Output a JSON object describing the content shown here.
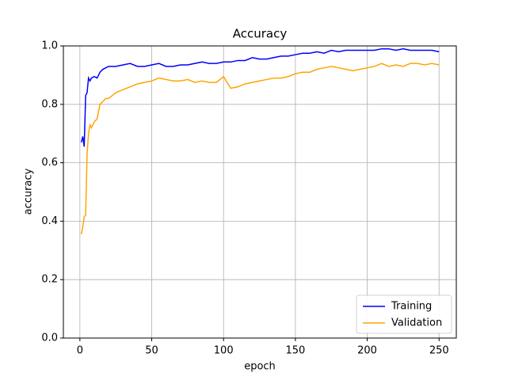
{
  "chart_data": {
    "type": "line",
    "title": "Accuracy",
    "x_label": "epoch",
    "y_label": "accuracy",
    "x": [
      1,
      2,
      3,
      4,
      5,
      6,
      7,
      8,
      10,
      12,
      14,
      16,
      18,
      20,
      25,
      30,
      35,
      40,
      45,
      50,
      55,
      60,
      65,
      70,
      75,
      80,
      85,
      90,
      95,
      100,
      105,
      110,
      115,
      120,
      125,
      130,
      135,
      140,
      145,
      150,
      155,
      160,
      165,
      170,
      175,
      180,
      185,
      190,
      195,
      200,
      205,
      210,
      215,
      220,
      225,
      230,
      235,
      240,
      245,
      250
    ],
    "series": [
      {
        "name": "Training",
        "color": "#0000ff",
        "values": [
          0.67,
          0.69,
          0.655,
          0.83,
          0.84,
          0.89,
          0.88,
          0.89,
          0.895,
          0.89,
          0.91,
          0.92,
          0.925,
          0.93,
          0.93,
          0.935,
          0.94,
          0.93,
          0.93,
          0.935,
          0.94,
          0.93,
          0.93,
          0.935,
          0.935,
          0.94,
          0.945,
          0.94,
          0.94,
          0.945,
          0.945,
          0.95,
          0.95,
          0.96,
          0.955,
          0.955,
          0.96,
          0.965,
          0.965,
          0.97,
          0.975,
          0.975,
          0.98,
          0.975,
          0.985,
          0.98,
          0.985,
          0.985,
          0.985,
          0.985,
          0.985,
          0.99,
          0.99,
          0.985,
          0.99,
          0.985,
          0.985,
          0.985,
          0.985,
          0.98
        ]
      },
      {
        "name": "Validation",
        "color": "#ffa500",
        "values": [
          0.355,
          0.38,
          0.415,
          0.42,
          0.63,
          0.7,
          0.73,
          0.72,
          0.74,
          0.75,
          0.8,
          0.81,
          0.82,
          0.82,
          0.84,
          0.85,
          0.86,
          0.87,
          0.875,
          0.88,
          0.89,
          0.885,
          0.88,
          0.88,
          0.885,
          0.875,
          0.88,
          0.875,
          0.875,
          0.895,
          0.855,
          0.86,
          0.87,
          0.875,
          0.88,
          0.885,
          0.89,
          0.89,
          0.895,
          0.905,
          0.91,
          0.91,
          0.92,
          0.925,
          0.93,
          0.925,
          0.92,
          0.915,
          0.92,
          0.925,
          0.93,
          0.94,
          0.93,
          0.935,
          0.93,
          0.94,
          0.94,
          0.935,
          0.94,
          0.935
        ]
      }
    ],
    "xlim": [
      -11.5,
      262
    ],
    "ylim": [
      0,
      1
    ],
    "xticks": [
      0,
      50,
      100,
      150,
      200,
      250
    ],
    "yticks": [
      {
        "value": 0,
        "label": "0.0"
      },
      {
        "value": 0.2,
        "label": "0.2"
      },
      {
        "value": 0.4,
        "label": "0.4"
      },
      {
        "value": 0.6,
        "label": "0.6"
      },
      {
        "value": 0.8,
        "label": "0.8"
      },
      {
        "value": 1,
        "label": "1.0"
      }
    ],
    "grid": true,
    "legend": "lower right"
  }
}
